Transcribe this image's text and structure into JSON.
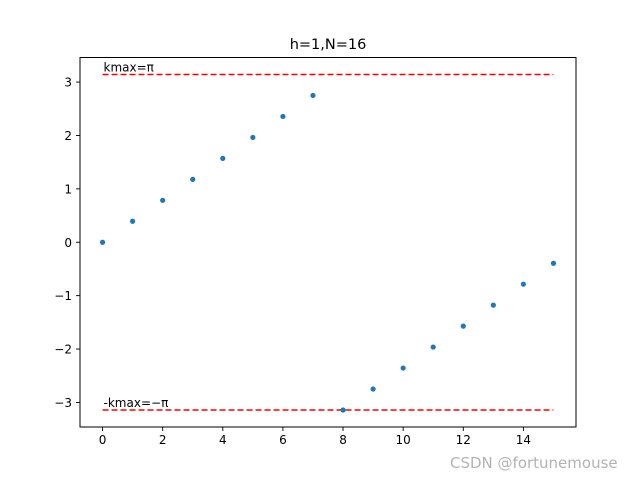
{
  "chart_data": {
    "type": "scatter",
    "title": "h=1,N=16",
    "xlabel": "",
    "ylabel": "",
    "xlim": [
      -0.75,
      15.75
    ],
    "ylim": [
      -3.46,
      3.46
    ],
    "xticks": [
      0,
      2,
      4,
      6,
      8,
      10,
      12,
      14
    ],
    "yticks": [
      -3,
      -2,
      -1,
      0,
      1,
      2,
      3
    ],
    "ytick_labels": [
      "−3",
      "−2",
      "−1",
      "0",
      "1",
      "2",
      "3"
    ],
    "grid": false,
    "point_color": "#1f77b4",
    "series": [
      {
        "x": [
          0,
          1,
          2,
          3,
          4,
          5,
          6,
          7,
          8,
          9,
          10,
          11,
          12,
          13,
          14,
          15
        ],
        "y": [
          0,
          0.393,
          0.785,
          1.178,
          1.571,
          1.963,
          2.356,
          2.749,
          -3.142,
          -2.749,
          -2.356,
          -1.963,
          -1.571,
          -1.178,
          -0.785,
          -0.393
        ]
      }
    ],
    "reference_lines": [
      {
        "y": 3.14159,
        "x_from": 0,
        "x_to": 15,
        "color": "#ff0000",
        "style": "dashed",
        "label": "kmax=π"
      },
      {
        "y": -3.14159,
        "x_from": 0,
        "x_to": 15,
        "color": "#ff0000",
        "style": "dashed",
        "label": "-kmax=−π"
      }
    ]
  },
  "watermark": "CSDN @fortunemouse"
}
